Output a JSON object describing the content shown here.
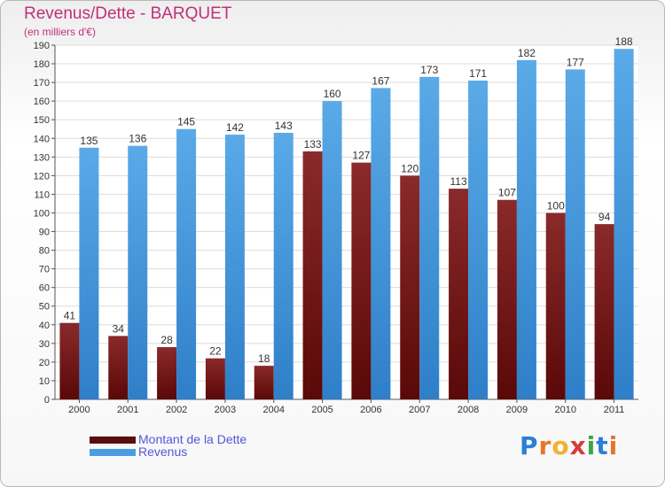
{
  "header": {
    "title": "Revenus/Dette - BARQUET",
    "subtitle": "(en milliers d'€)"
  },
  "chart_data": {
    "type": "bar",
    "categories": [
      "2000",
      "2001",
      "2002",
      "2003",
      "2004",
      "2005",
      "2006",
      "2007",
      "2008",
      "2009",
      "2010",
      "2011"
    ],
    "series": [
      {
        "name": "Montant de la Dette",
        "color": "#7b2020",
        "values": [
          41,
          34,
          28,
          22,
          18,
          133,
          127,
          120,
          113,
          107,
          100,
          94
        ]
      },
      {
        "name": "Revenus",
        "color": "#4a9de0",
        "values": [
          135,
          136,
          145,
          142,
          143,
          160,
          167,
          173,
          171,
          182,
          177,
          188
        ]
      }
    ],
    "ylim": [
      0,
      190
    ],
    "ytick_step": 10,
    "grid": true,
    "legend_position": "bottom-left",
    "title": "Revenus/Dette - BARQUET",
    "xlabel": "",
    "ylabel": "(en milliers d'€)"
  },
  "legend": [
    {
      "label": "Montant de la Dette",
      "color": "#5a0f0f"
    },
    {
      "label": "Revenus",
      "color": "#4a9de0"
    }
  ],
  "logo": {
    "letters": [
      "P",
      "r",
      "o",
      "x",
      "i",
      "t",
      "i"
    ],
    "colors": [
      "#2a7fd4",
      "#e8742a",
      "#f2b132",
      "#d63b3b",
      "#3aa64a",
      "#2a7fd4",
      "#e8742a"
    ]
  }
}
